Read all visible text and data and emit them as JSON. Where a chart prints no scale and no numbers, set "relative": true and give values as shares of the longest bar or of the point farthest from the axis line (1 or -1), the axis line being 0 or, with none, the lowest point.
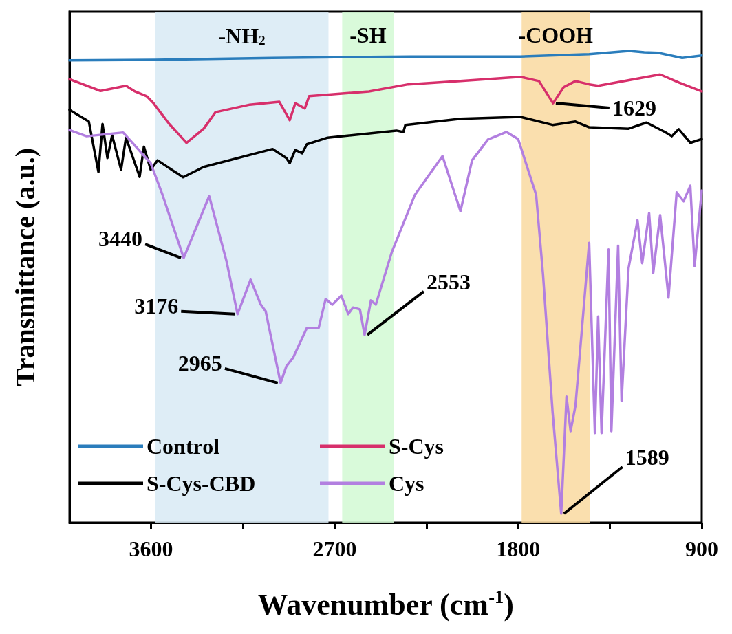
{
  "chart_data": {
    "type": "line",
    "xlabel": "Wavenumber (cm$^{-1}$)",
    "ylabel": "Transmittance (a.u.)",
    "relative": true,
    "xlim": [
      4000,
      900
    ],
    "xticks": [
      3600,
      {
        "value": 3150,
        "label": null
      },
      2700,
      {
        "value": 2250,
        "label": null
      },
      1800,
      {
        "value": 1350,
        "label": null
      },
      900
    ],
    "legend": "bottom left",
    "marker": "none",
    "line_style": "solid",
    "series": [
      {
        "name": "Control",
        "color": "#2a7dbc",
        "x": [
          4000,
          3581,
          3004,
          2329,
          1789,
          1452,
          1256,
          1182,
          1114,
          996,
          900
        ],
        "values": [
          0.98,
          0.981,
          0.985,
          0.988,
          0.988,
          0.993,
          1.0,
          0.997,
          0.996,
          0.985,
          0.99
        ]
      },
      {
        "name": "S-Cys",
        "color": "#d72f6b",
        "x": [
          4000,
          3848,
          3723,
          3679,
          3622,
          3588,
          3511,
          3426,
          3342,
          3284,
          3116,
          2971,
          2920,
          2893,
          2846,
          2825,
          2532,
          2340,
          2083,
          1789,
          1698,
          1629,
          1577,
          1519,
          1452,
          1408,
          1104,
          1013,
          900
        ],
        "values": [
          0.94,
          0.915,
          0.926,
          0.914,
          0.904,
          0.889,
          0.845,
          0.805,
          0.835,
          0.87,
          0.886,
          0.892,
          0.853,
          0.889,
          0.878,
          0.904,
          0.914,
          0.929,
          0.936,
          0.945,
          0.936,
          0.889,
          0.923,
          0.936,
          0.929,
          0.926,
          0.95,
          0.933,
          0.914
        ]
      },
      {
        "name": "S-Cys-CBD",
        "color": "#000000",
        "x": [
          4000,
          3905,
          3858,
          3838,
          3814,
          3791,
          3747,
          3723,
          3656,
          3635,
          3602,
          3568,
          3443,
          3342,
          3004,
          2937,
          2920,
          2893,
          2859,
          2836,
          2734,
          2397,
          2363,
          2353,
          2083,
          1789,
          1631,
          1519,
          1452,
          1259,
          1171,
          1080,
          1047,
          1013,
          956,
          900
        ],
        "values": [
          0.875,
          0.85,
          0.743,
          0.845,
          0.773,
          0.821,
          0.748,
          0.816,
          0.733,
          0.797,
          0.748,
          0.768,
          0.732,
          0.754,
          0.792,
          0.773,
          0.762,
          0.79,
          0.783,
          0.802,
          0.816,
          0.831,
          0.828,
          0.843,
          0.856,
          0.86,
          0.843,
          0.85,
          0.838,
          0.835,
          0.848,
          0.828,
          0.819,
          0.834,
          0.805,
          0.813
        ]
      },
      {
        "name": "Cys",
        "color": "#b27fe0",
        "x": [
          4000,
          3916,
          3737,
          3602,
          3544,
          3440,
          3315,
          3230,
          3176,
          3112,
          3062,
          3038,
          2965,
          2937,
          2903,
          2836,
          2778,
          2744,
          2711,
          2667,
          2633,
          2610,
          2576,
          2553,
          2522,
          2498,
          2420,
          2306,
          2171,
          2083,
          2026,
          1948,
          1857,
          1800,
          1712,
          1678,
          1631,
          1589,
          1563,
          1543,
          1519,
          1452,
          1424,
          1408,
          1391,
          1357,
          1343,
          1310,
          1293,
          1259,
          1215,
          1192,
          1158,
          1138,
          1104,
          1063,
          1023,
          989,
          956,
          935,
          900
        ],
        "values": [
          0.832,
          0.819,
          0.827,
          0.762,
          0.695,
          0.561,
          0.692,
          0.554,
          0.442,
          0.515,
          0.462,
          0.448,
          0.296,
          0.331,
          0.35,
          0.413,
          0.413,
          0.474,
          0.462,
          0.481,
          0.442,
          0.456,
          0.452,
          0.398,
          0.471,
          0.462,
          0.573,
          0.695,
          0.777,
          0.66,
          0.768,
          0.812,
          0.828,
          0.813,
          0.695,
          0.525,
          0.233,
          0.019,
          0.267,
          0.194,
          0.248,
          0.593,
          0.19,
          0.437,
          0.19,
          0.579,
          0.194,
          0.587,
          0.258,
          0.539,
          0.641,
          0.55,
          0.656,
          0.529,
          0.652,
          0.477,
          0.7,
          0.681,
          0.714,
          0.544,
          0.704
        ]
      }
    ],
    "bands": [
      {
        "axis": "x",
        "from": 3580,
        "to": 2730,
        "label": "-NH$_{2}$",
        "color": "#d8eaf4"
      },
      {
        "axis": "x",
        "from": 2663,
        "to": 2410,
        "label": "-SH",
        "color": "#d2f9d3"
      },
      {
        "axis": "x",
        "from": 1783,
        "to": 1449,
        "label": "-COOH",
        "color": "#f9d9a0"
      }
    ],
    "annotations": [
      {
        "text": "3440",
        "x": 3440,
        "y": 0.561
      },
      {
        "text": "3176",
        "x": 3176,
        "y": 0.442
      },
      {
        "text": "2965",
        "x": 2965,
        "y": 0.296
      },
      {
        "text": "2553",
        "x": 2553,
        "y": 0.398
      },
      {
        "text": "1629",
        "x": 1629,
        "y": 0.889
      },
      {
        "text": "1589",
        "x": 1589,
        "y": 0.019
      }
    ]
  }
}
